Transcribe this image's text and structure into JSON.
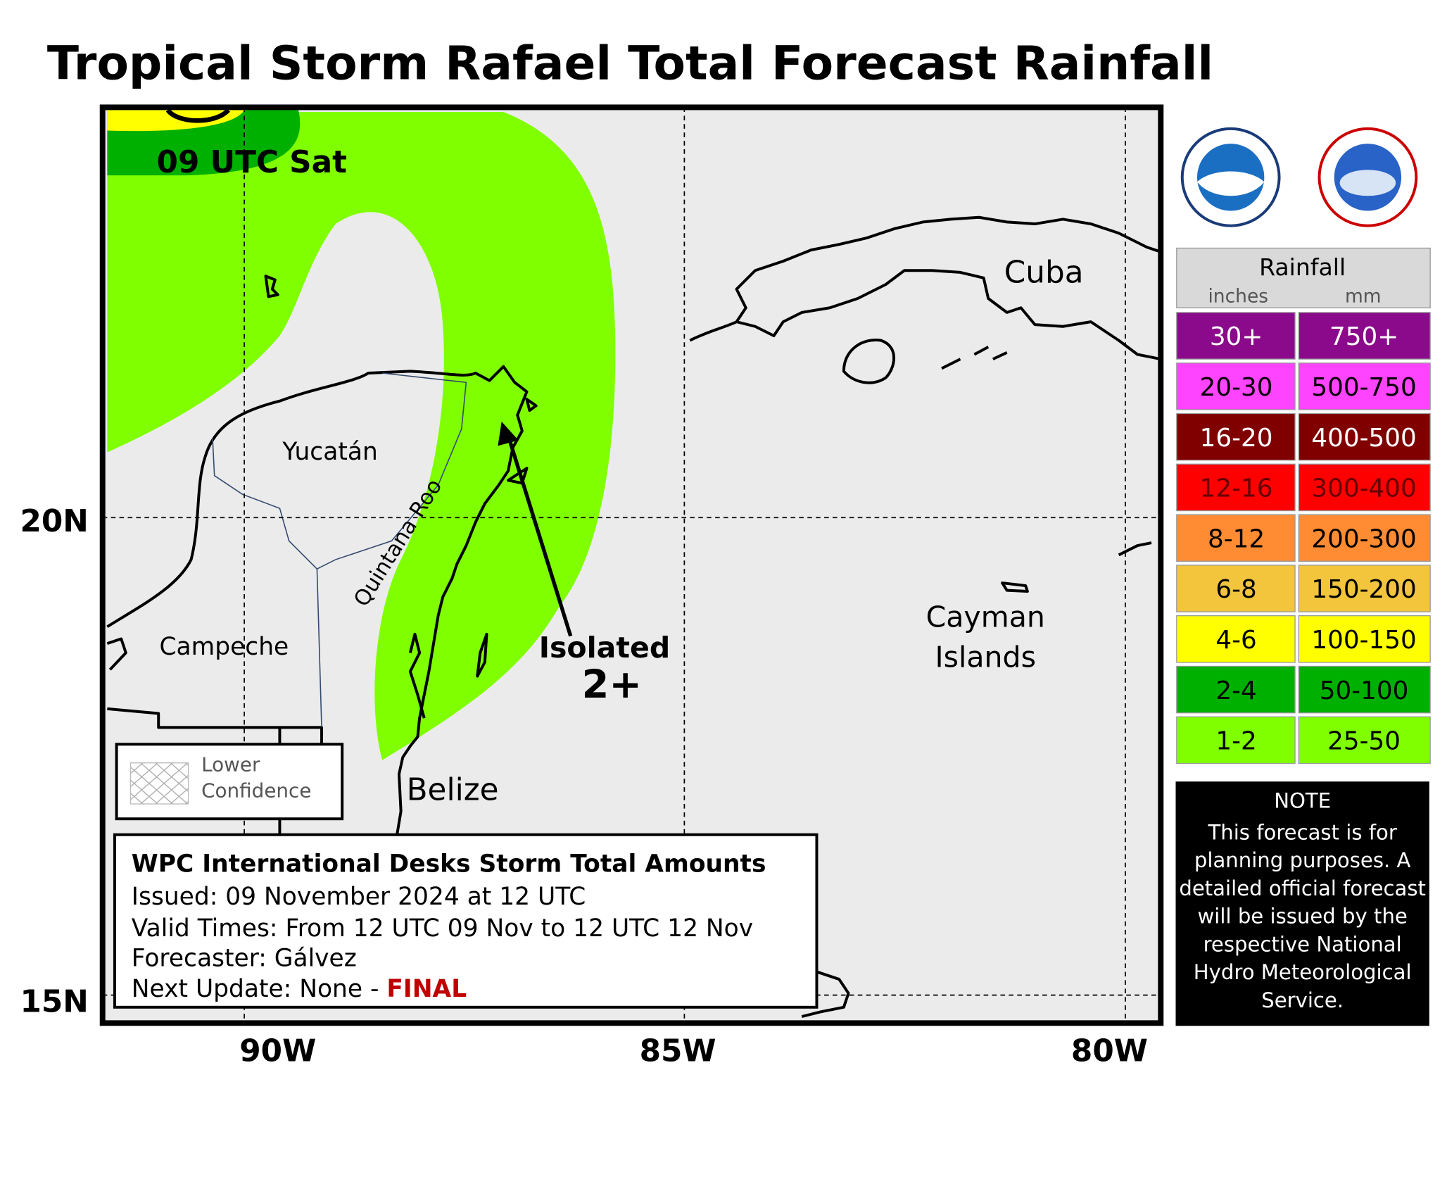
{
  "title": "Tropical Storm Rafael Total Forecast Rainfall",
  "map": {
    "time_label": "09 UTC Sat",
    "yucatan": "Yucatán",
    "quintana_roo": "Quintana Roo",
    "campeche": "Campeche",
    "belize": "Belize",
    "cuba": "Cuba",
    "cayman": [
      "Cayman",
      "Islands"
    ],
    "isolated": "Isolated",
    "amount": "2+"
  },
  "lat_labels": [
    "20N",
    "15N"
  ],
  "lon_labels": [
    "90W",
    "85W",
    "80W"
  ],
  "confidence": [
    "Lower",
    "Confidence"
  ],
  "info": {
    "title": "WPC International Desks Storm Total Amounts",
    "issued": "Issued:  09 November 2024 at 12 UTC",
    "valid": "Valid Times:  From 12 UTC 09 Nov to 12 UTC 12 Nov",
    "forecaster": "Forecaster: Gálvez",
    "next_update": "Next Update: None -",
    "final": "FINAL"
  },
  "legend": {
    "title": "Rainfall",
    "units": [
      "inches",
      "mm"
    ],
    "rows": [
      {
        "inches": "30+",
        "mm": "750+",
        "color": "#8b0a8b"
      },
      {
        "inches": "20-30",
        "mm": "500-750",
        "color": "#ff44ff"
      },
      {
        "inches": "16-20",
        "mm": "400-500",
        "color": "#800000"
      },
      {
        "inches": "12-16",
        "mm": "300-400",
        "color": "#ff0000"
      },
      {
        "inches": "8-12",
        "mm": "200-300",
        "color": "#ff8c33"
      },
      {
        "inches": "6-8",
        "mm": "150-200",
        "color": "#f2c53d"
      },
      {
        "inches": "4-6",
        "mm": "100-150",
        "color": "#ffff00"
      },
      {
        "inches": "2-4",
        "mm": "50-100",
        "color": "#00b000"
      },
      {
        "inches": "1-2",
        "mm": "25-50",
        "color": "#80ff00"
      }
    ]
  },
  "note": {
    "title": "NOTE",
    "lines": [
      "This forecast is for",
      "planning purposes. A",
      "detailed official forecast",
      "will be issued by the",
      "respective National",
      "Hydro Meteorological",
      "Service."
    ]
  }
}
